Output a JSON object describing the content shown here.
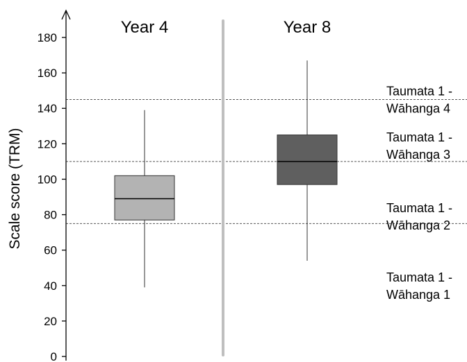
{
  "chart_data": {
    "type": "box",
    "ylabel": "Scale score (TRM)",
    "ylim": [
      0,
      185
    ],
    "yticks": [
      0,
      20,
      40,
      60,
      80,
      100,
      120,
      140,
      160,
      180
    ],
    "groups": [
      {
        "name": "Year 4",
        "color": "#b3b3b3",
        "min": 39,
        "q1": 77,
        "median": 89,
        "q3": 102,
        "max": 139
      },
      {
        "name": "Year 8",
        "color": "#5f5f5f",
        "min": 54,
        "q1": 97,
        "median": 110,
        "q3": 125,
        "max": 167
      }
    ],
    "thresholds": [
      75,
      110,
      145
    ],
    "bands": [
      {
        "line1": "Taumata 1 -",
        "line2": "Wāhanga 4",
        "y": 145
      },
      {
        "line1": "Taumata 1 -",
        "line2": "Wāhanga 3",
        "y": 119
      },
      {
        "line1": "Taumata 1 -",
        "line2": "Wāhanga 2",
        "y": 79
      },
      {
        "line1": "Taumata 1 -",
        "line2": "Wāhanga 1",
        "y": 40
      }
    ],
    "divider_color": "#bfbfbf"
  }
}
